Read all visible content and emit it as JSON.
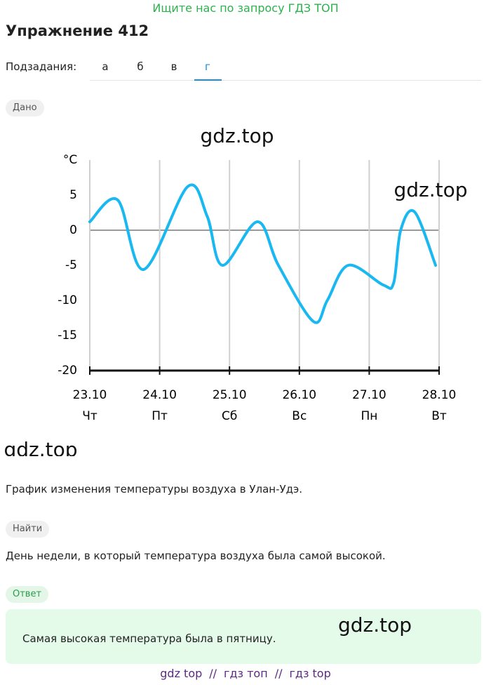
{
  "header": {
    "promo": "Ищите нас по запросу ГДЗ ТОП",
    "title": "Упражнение 412"
  },
  "subtasks": {
    "label": "Подзадания:",
    "items": [
      "а",
      "б",
      "в",
      "г"
    ],
    "active": 3
  },
  "given": {
    "label": "Дано"
  },
  "chart_data": {
    "type": "line",
    "annotations": [
      "gdz.top",
      "gdz.top",
      "gdz.top"
    ],
    "y_label": "°C",
    "x": [
      23.0,
      23.4,
      23.77,
      24.4,
      24.68,
      24.9,
      25.4,
      25.7,
      26.2,
      26.4,
      26.7,
      27.2,
      27.35,
      27.45,
      27.65,
      27.95
    ],
    "values": [
      1.2,
      4.3,
      -5.6,
      6.2,
      2,
      -5,
      1.2,
      -5,
      -13,
      -10,
      -5,
      -7.8,
      -7.5,
      0,
      2.6,
      -5
    ],
    "color": "#1ab8f0",
    "xlim": [
      23,
      28
    ],
    "xticks": [
      {
        "value": 23,
        "label": "23.10"
      },
      {
        "value": 24,
        "label": "24.10"
      },
      {
        "value": 25,
        "label": "25.10"
      },
      {
        "value": 26,
        "label": "26.10"
      },
      {
        "value": 27,
        "label": "27.10"
      },
      {
        "value": 28,
        "label": "28.10"
      }
    ],
    "x_sublabels": [
      "Чт",
      "Пт",
      "Сб",
      "Вс",
      "Пн",
      "Вт"
    ],
    "ylim": [
      -20,
      10
    ],
    "yticks": [
      -20,
      -15,
      -10,
      -5,
      0,
      5
    ],
    "zero_line": true,
    "grid": true
  },
  "description": "График изменения температуры воздуха в Улан-Удэ.",
  "find": {
    "label": "Найти",
    "text": "День недели, в который температура воздуха была самой высокой."
  },
  "answer": {
    "label": "Ответ",
    "text": "Самая высокая температура была в пятницу.",
    "watermark": "gdz.top"
  },
  "footer": {
    "links": [
      "gdz top",
      "гдз топ",
      "гдз top"
    ],
    "separator": "//"
  }
}
